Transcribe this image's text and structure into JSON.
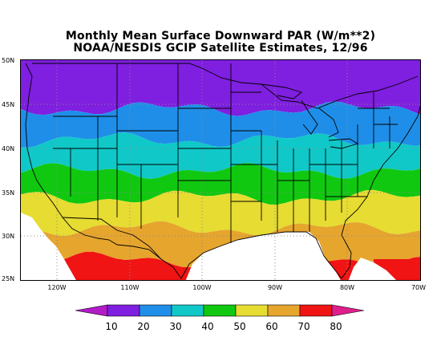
{
  "title": {
    "line1": "Monthly Mean Surface Downward PAR (W/m**2)",
    "line2": "NOAA/NESDIS GCIP Satellite Estimates, 12/96"
  },
  "map": {
    "lat_range": [
      25,
      50
    ],
    "lon_range": [
      -125,
      -70
    ],
    "lat_labels": [
      "50N",
      "45N",
      "40N",
      "35N",
      "30N",
      "25N"
    ],
    "lon_labels": [
      "120W",
      "110W",
      "100W",
      "90W",
      "80W",
      "70W"
    ],
    "field_contours_latitude": [
      {
        "value": 20,
        "lat": 44.5
      },
      {
        "value": 30,
        "lat": 41.0
      },
      {
        "value": 40,
        "lat": 37.5
      },
      {
        "value": 50,
        "lat": 34.5
      },
      {
        "value": 60,
        "lat": 31.0
      },
      {
        "value": 70,
        "lat": 27.5
      }
    ]
  },
  "colorbar": {
    "labels": [
      "10",
      "20",
      "30",
      "40",
      "50",
      "60",
      "70",
      "80"
    ],
    "bins": [
      {
        "range": "<10",
        "color": "#b21cc8"
      },
      {
        "range": "10-20",
        "color": "#7f1fe0"
      },
      {
        "range": "20-30",
        "color": "#1f8ee8"
      },
      {
        "range": "30-40",
        "color": "#10c8c8"
      },
      {
        "range": "40-50",
        "color": "#10c810"
      },
      {
        "range": "50-60",
        "color": "#e6dc32"
      },
      {
        "range": "60-70",
        "color": "#e6a52d"
      },
      {
        "range": "70-80",
        "color": "#f01414"
      },
      {
        "range": ">80",
        "color": "#e01e8c"
      }
    ]
  }
}
